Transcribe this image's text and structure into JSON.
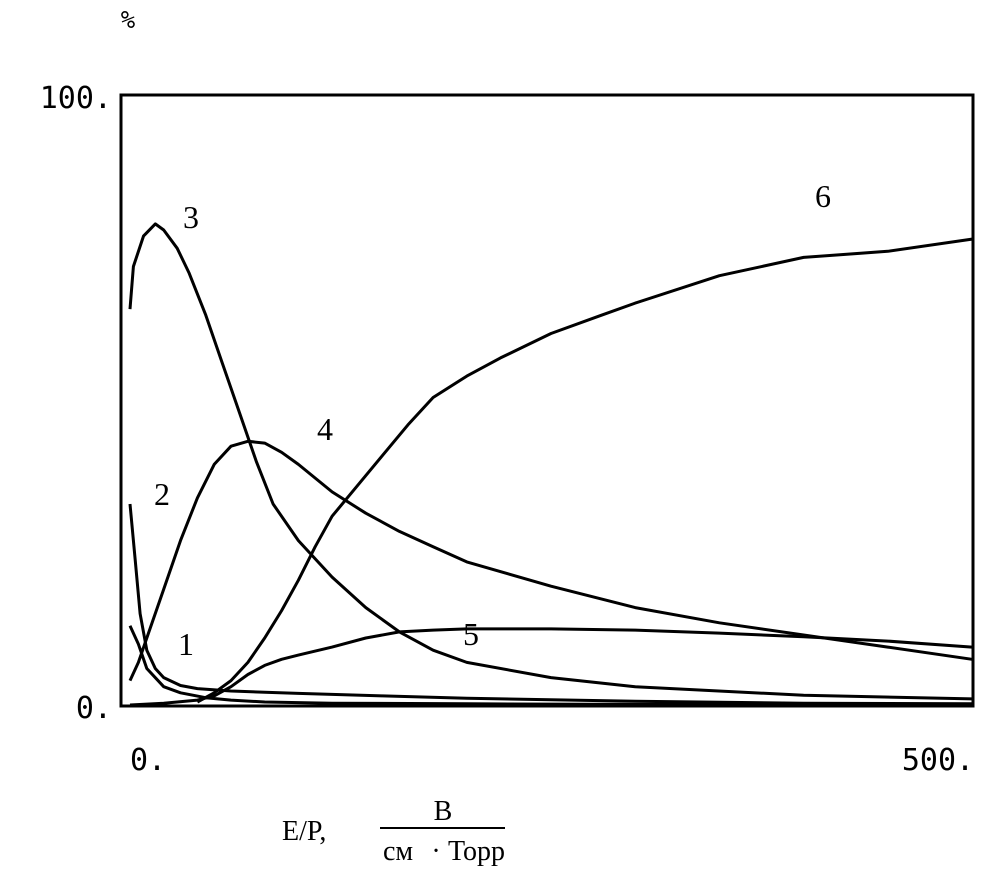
{
  "chart_data": {
    "type": "line",
    "title": "",
    "ylabel": "%",
    "xlabel": "E/P,",
    "xlabel_unit_numerator": "В",
    "xlabel_unit_denominator_left": "см",
    "xlabel_unit_denominator_dot": "·",
    "xlabel_unit_denominator_right": "Торр",
    "xlim": [
      0,
      500
    ],
    "ylim": [
      0,
      100
    ],
    "x_ticks": [
      {
        "value": 0,
        "label": "0."
      },
      {
        "value": 500,
        "label": "500."
      }
    ],
    "y_ticks": [
      {
        "value": 0,
        "label": "0."
      },
      {
        "value": 100,
        "label": "100."
      }
    ],
    "grid": false,
    "series": [
      {
        "name": "1",
        "x": [
          0,
          5,
          10,
          20,
          30,
          45,
          60,
          80,
          120,
          200,
          300,
          400,
          500
        ],
        "y": [
          13,
          10,
          6,
          3,
          2,
          1.2,
          0.8,
          0.5,
          0.3,
          0.2,
          0.1,
          0.05,
          0.03
        ]
      },
      {
        "name": "2",
        "x": [
          0,
          3,
          6,
          10,
          15,
          20,
          30,
          40,
          60,
          80,
          100,
          150,
          200,
          300,
          400,
          500
        ],
        "y": [
          33,
          24,
          15,
          9,
          6,
          4.5,
          3.2,
          2.7,
          2.3,
          2.1,
          1.9,
          1.5,
          1.1,
          0.6,
          0.3,
          0.2
        ]
      },
      {
        "name": "3",
        "x": [
          0,
          2,
          8,
          15,
          20,
          28,
          35,
          45,
          55,
          65,
          75,
          85,
          100,
          120,
          140,
          160,
          180,
          200,
          250,
          300,
          400,
          500
        ],
        "y": [
          65,
          72,
          77,
          79,
          78,
          75,
          71,
          64,
          56,
          48,
          40,
          33,
          27,
          21,
          16,
          12,
          9,
          7,
          4.5,
          3,
          1.6,
          1
        ]
      },
      {
        "name": "4",
        "x": [
          0,
          5,
          10,
          20,
          30,
          40,
          50,
          60,
          70,
          80,
          90,
          100,
          120,
          140,
          160,
          180,
          200,
          250,
          300,
          350,
          400,
          450,
          500
        ],
        "y": [
          4,
          7,
          11,
          19,
          27,
          34,
          39.5,
          42.5,
          43.3,
          43,
          41.5,
          39.5,
          35,
          31.5,
          28.5,
          26,
          23.5,
          19.5,
          16,
          13.5,
          11.5,
          9.5,
          7.5
        ]
      },
      {
        "name": "5",
        "x": [
          0,
          20,
          40,
          50,
          60,
          70,
          80,
          90,
          100,
          120,
          140,
          160,
          180,
          200,
          250,
          300,
          350,
          400,
          450,
          500
        ],
        "y": [
          0,
          0.3,
          0.8,
          1.5,
          3,
          5,
          6.5,
          7.5,
          8.2,
          9.5,
          11,
          12,
          12.3,
          12.5,
          12.5,
          12.3,
          11.8,
          11.2,
          10.5,
          9.5
        ]
      },
      {
        "name": "6",
        "x": [
          40,
          50,
          60,
          70,
          80,
          90,
          100,
          110,
          120,
          135,
          150,
          165,
          180,
          200,
          220,
          250,
          280,
          300,
          350,
          400,
          450,
          500
        ],
        "y": [
          0.5,
          2,
          4,
          7,
          11,
          15.5,
          20.5,
          26,
          31,
          36,
          41,
          46,
          50.5,
          54,
          57,
          61,
          64,
          66,
          70.5,
          73.5,
          74.5,
          76.5
        ]
      }
    ]
  }
}
